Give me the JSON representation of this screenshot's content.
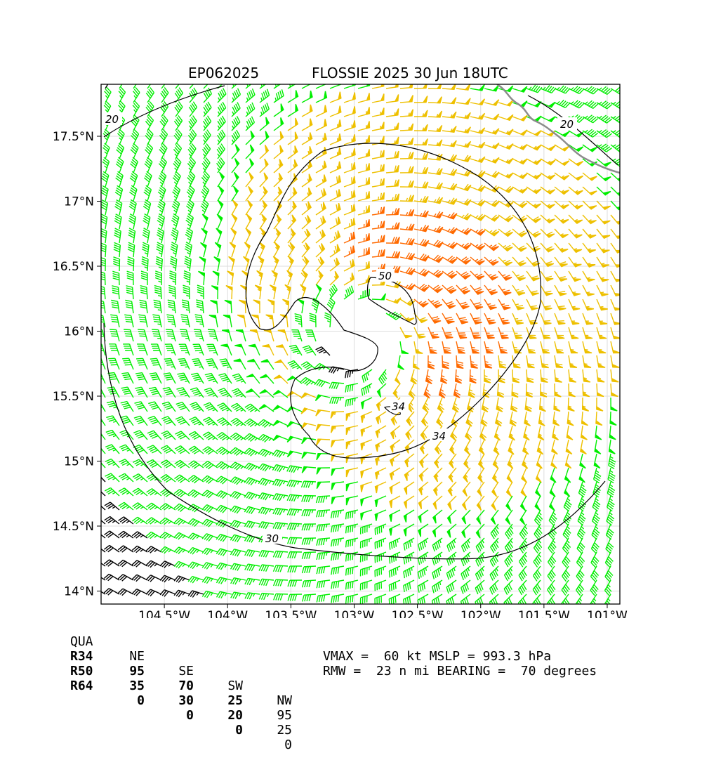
{
  "header": {
    "storm_id": "EP062025",
    "title": "FLOSSIE 2025 30 Jun 18UTC"
  },
  "map": {
    "lon_range": [
      -105.0,
      -100.9
    ],
    "lat_range": [
      13.9,
      17.9
    ],
    "lon_ticks": [
      {
        "value": -104.5,
        "label": "104.5°W"
      },
      {
        "value": -104.0,
        "label": "104°W"
      },
      {
        "value": -103.5,
        "label": "103.5°W"
      },
      {
        "value": -103.0,
        "label": "103°W"
      },
      {
        "value": -102.5,
        "label": "102.5°W"
      },
      {
        "value": -102.0,
        "label": "102°W"
      },
      {
        "value": -101.5,
        "label": "101.5°W"
      },
      {
        "value": -101.0,
        "label": "101°W"
      }
    ],
    "lat_ticks": [
      {
        "value": 17.5,
        "label": "17.5°N"
      },
      {
        "value": 17.0,
        "label": "17°N"
      },
      {
        "value": 16.5,
        "label": "16.5°N"
      },
      {
        "value": 16.0,
        "label": "16°N"
      },
      {
        "value": 15.5,
        "label": "15.5°N"
      },
      {
        "value": 15.0,
        "label": "15°N"
      },
      {
        "value": 14.5,
        "label": "14.5°N"
      },
      {
        "value": 14.0,
        "label": "14°N"
      }
    ],
    "grid": true,
    "storm_center": {
      "lon": -102.95,
      "lat": 15.95
    },
    "wind_colors": {
      "below_34kt": "#000000",
      "34_to_49kt": "#00ee00",
      "50_to_63kt": "#eec000",
      "64_plus_kt": "#ff6a00",
      "coastline": "#8c8c8c"
    },
    "contours": [
      {
        "label": "20"
      },
      {
        "label": "30"
      },
      {
        "label": "34"
      },
      {
        "label": "34"
      },
      {
        "label": "50"
      }
    ]
  },
  "wind_radii_table": {
    "headers": [
      "QUA",
      "NE",
      "SE",
      "SW",
      "NW"
    ],
    "rows": [
      {
        "name": "R34",
        "values": [
          "95",
          "70",
          "25",
          "95"
        ]
      },
      {
        "name": "R50",
        "values": [
          "35",
          "30",
          "20",
          "25"
        ]
      },
      {
        "name": "R64",
        "values": [
          "0",
          "0",
          "0",
          "0"
        ]
      }
    ]
  },
  "summary": {
    "line1": "VMAX =  60 kt MSLP = 993.3 hPa",
    "line2": "RMW =  23 n mi BEARING =  70 degrees"
  }
}
